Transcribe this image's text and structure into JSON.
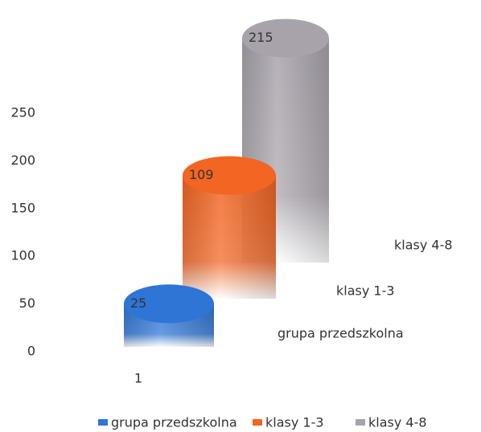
{
  "chart_data": {
    "type": "cylinder3d",
    "categories": [
      "1"
    ],
    "series": [
      {
        "name": "grupa przedszkolna",
        "color": "#2e75d6",
        "values": [
          25
        ]
      },
      {
        "name": "klasy 1-3",
        "color": "#f26522",
        "values": [
          109
        ]
      },
      {
        "name": "klasy 4-8",
        "color": "#a8a3ab",
        "values": [
          215
        ]
      }
    ],
    "ylim": [
      0,
      250
    ],
    "yticks": [
      0,
      50,
      100,
      150,
      200,
      250
    ],
    "legend": "bottom"
  }
}
